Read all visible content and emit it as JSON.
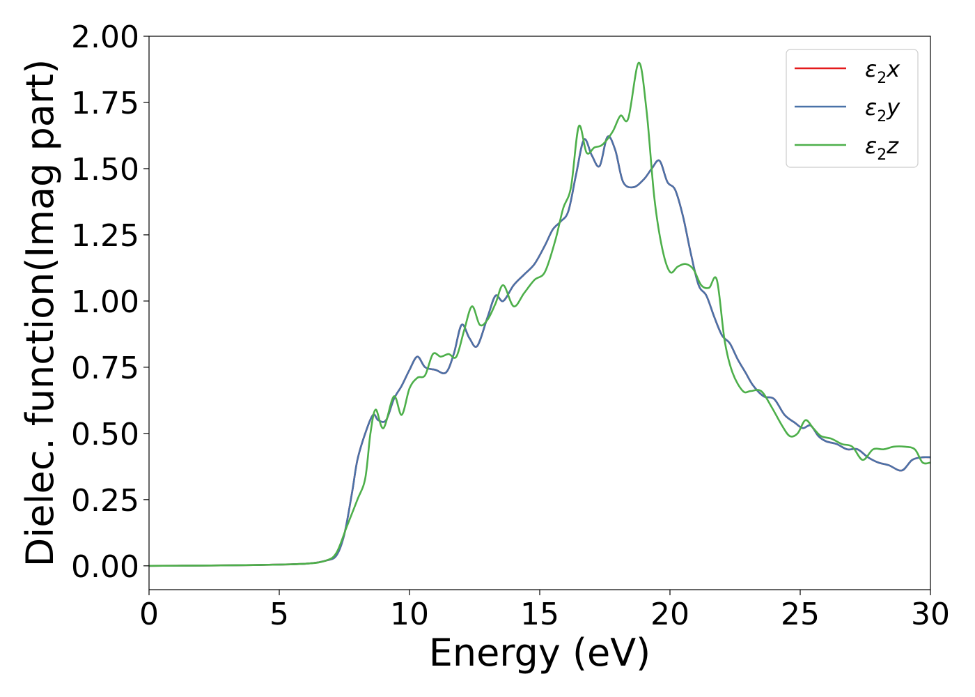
{
  "chart_data": {
    "type": "line",
    "title": "",
    "xlabel": "Energy (eV)",
    "ylabel": "Dielec. function(Imag part)",
    "xlim": [
      0,
      30
    ],
    "ylim": [
      -0.09,
      2.0
    ],
    "xticks": [
      0,
      5,
      10,
      15,
      20,
      25,
      30
    ],
    "xtick_labels": [
      "0",
      "5",
      "10",
      "15",
      "20",
      "25",
      "30"
    ],
    "yticks": [
      0,
      0.25,
      0.5,
      0.75,
      1.0,
      1.25,
      1.5,
      1.75,
      2.0
    ],
    "ytick_labels": [
      "0.00",
      "0.25",
      "0.50",
      "0.75",
      "1.00",
      "1.25",
      "1.50",
      "1.75",
      "2.00"
    ],
    "grid": false,
    "legend_position": "top-right",
    "series": [
      {
        "name": "ε₂x",
        "legend_base": "ε",
        "legend_sub": "2",
        "legend_suffix": "x",
        "color": "#e41a1c",
        "x": [
          0,
          2,
          4,
          6,
          6.8,
          7.2,
          7.5,
          7.8,
          8.0,
          8.3,
          8.6,
          8.8,
          9.1,
          9.4,
          9.7,
          10.0,
          10.3,
          10.6,
          11.0,
          11.4,
          11.7,
          12.0,
          12.3,
          12.6,
          13.0,
          13.3,
          13.6,
          14.0,
          14.4,
          14.8,
          15.2,
          15.5,
          15.8,
          16.1,
          16.4,
          16.7,
          17.0,
          17.3,
          17.6,
          17.9,
          18.2,
          18.6,
          19.0,
          19.3,
          19.6,
          19.9,
          20.2,
          20.5,
          20.8,
          21.1,
          21.4,
          21.7,
          22.0,
          22.3,
          22.6,
          22.9,
          23.2,
          23.6,
          24.0,
          24.4,
          24.8,
          25.1,
          25.4,
          25.7,
          26.0,
          26.4,
          26.8,
          27.2,
          27.6,
          28.0,
          28.4,
          28.9,
          29.3,
          29.7,
          30.0
        ],
        "y": [
          0.0,
          0.001,
          0.003,
          0.008,
          0.02,
          0.04,
          0.12,
          0.28,
          0.4,
          0.5,
          0.57,
          0.55,
          0.55,
          0.63,
          0.68,
          0.74,
          0.79,
          0.75,
          0.74,
          0.73,
          0.8,
          0.91,
          0.86,
          0.83,
          0.94,
          1.02,
          1.0,
          1.06,
          1.1,
          1.14,
          1.21,
          1.27,
          1.3,
          1.34,
          1.48,
          1.61,
          1.55,
          1.51,
          1.62,
          1.57,
          1.45,
          1.43,
          1.46,
          1.5,
          1.53,
          1.45,
          1.42,
          1.32,
          1.18,
          1.06,
          1.02,
          0.94,
          0.87,
          0.84,
          0.78,
          0.73,
          0.68,
          0.64,
          0.63,
          0.57,
          0.54,
          0.52,
          0.53,
          0.49,
          0.47,
          0.46,
          0.44,
          0.44,
          0.41,
          0.39,
          0.38,
          0.36,
          0.4,
          0.41,
          0.41
        ]
      },
      {
        "name": "ε₂y",
        "legend_base": "ε",
        "legend_sub": "2",
        "legend_suffix": "y",
        "color": "#4a72a8",
        "x": [
          0,
          2,
          4,
          6,
          6.8,
          7.2,
          7.5,
          7.8,
          8.0,
          8.3,
          8.6,
          8.8,
          9.1,
          9.4,
          9.7,
          10.0,
          10.3,
          10.6,
          11.0,
          11.4,
          11.7,
          12.0,
          12.3,
          12.6,
          13.0,
          13.3,
          13.6,
          14.0,
          14.4,
          14.8,
          15.2,
          15.5,
          15.8,
          16.1,
          16.4,
          16.7,
          17.0,
          17.3,
          17.6,
          17.9,
          18.2,
          18.6,
          19.0,
          19.3,
          19.6,
          19.9,
          20.2,
          20.5,
          20.8,
          21.1,
          21.4,
          21.7,
          22.0,
          22.3,
          22.6,
          22.9,
          23.2,
          23.6,
          24.0,
          24.4,
          24.8,
          25.1,
          25.4,
          25.7,
          26.0,
          26.4,
          26.8,
          27.2,
          27.6,
          28.0,
          28.4,
          28.9,
          29.3,
          29.7,
          30.0
        ],
        "y": [
          0.0,
          0.001,
          0.003,
          0.008,
          0.02,
          0.04,
          0.12,
          0.28,
          0.4,
          0.5,
          0.57,
          0.55,
          0.55,
          0.63,
          0.68,
          0.74,
          0.79,
          0.75,
          0.74,
          0.73,
          0.8,
          0.91,
          0.86,
          0.83,
          0.94,
          1.02,
          1.0,
          1.06,
          1.1,
          1.14,
          1.21,
          1.27,
          1.3,
          1.34,
          1.48,
          1.61,
          1.55,
          1.51,
          1.62,
          1.57,
          1.45,
          1.43,
          1.46,
          1.5,
          1.53,
          1.45,
          1.42,
          1.32,
          1.18,
          1.06,
          1.02,
          0.94,
          0.87,
          0.84,
          0.78,
          0.73,
          0.68,
          0.64,
          0.63,
          0.57,
          0.54,
          0.52,
          0.53,
          0.49,
          0.47,
          0.46,
          0.44,
          0.44,
          0.41,
          0.39,
          0.38,
          0.36,
          0.4,
          0.41,
          0.41
        ]
      },
      {
        "name": "ε₂z",
        "legend_base": "ε",
        "legend_sub": "2",
        "legend_suffix": "z",
        "color": "#4daf4a",
        "x": [
          0,
          2,
          4,
          6,
          6.8,
          7.2,
          7.6,
          8.0,
          8.3,
          8.5,
          8.7,
          9.0,
          9.4,
          9.7,
          10.0,
          10.3,
          10.6,
          10.9,
          11.2,
          11.5,
          11.8,
          12.1,
          12.4,
          12.7,
          13.0,
          13.3,
          13.6,
          14.0,
          14.4,
          14.8,
          15.2,
          15.6,
          15.9,
          16.2,
          16.5,
          16.8,
          17.1,
          17.4,
          17.8,
          18.1,
          18.4,
          18.8,
          19.1,
          19.4,
          19.7,
          20.0,
          20.3,
          20.6,
          20.9,
          21.2,
          21.5,
          21.8,
          22.1,
          22.4,
          22.8,
          23.1,
          23.5,
          23.9,
          24.3,
          24.6,
          24.9,
          25.2,
          25.5,
          25.8,
          26.2,
          26.6,
          27.0,
          27.4,
          27.8,
          28.2,
          28.6,
          29.0,
          29.4,
          29.7,
          30.0
        ],
        "y": [
          0.0,
          0.001,
          0.003,
          0.008,
          0.02,
          0.05,
          0.15,
          0.25,
          0.33,
          0.5,
          0.59,
          0.52,
          0.64,
          0.57,
          0.67,
          0.71,
          0.72,
          0.8,
          0.79,
          0.8,
          0.79,
          0.89,
          0.98,
          0.91,
          0.93,
          0.99,
          1.06,
          0.98,
          1.03,
          1.08,
          1.11,
          1.23,
          1.35,
          1.43,
          1.66,
          1.56,
          1.58,
          1.59,
          1.64,
          1.7,
          1.69,
          1.9,
          1.72,
          1.39,
          1.2,
          1.11,
          1.13,
          1.14,
          1.12,
          1.06,
          1.05,
          1.08,
          0.85,
          0.73,
          0.66,
          0.66,
          0.66,
          0.6,
          0.53,
          0.49,
          0.5,
          0.55,
          0.52,
          0.49,
          0.48,
          0.46,
          0.45,
          0.4,
          0.44,
          0.44,
          0.45,
          0.45,
          0.44,
          0.39,
          0.39
        ]
      }
    ]
  }
}
